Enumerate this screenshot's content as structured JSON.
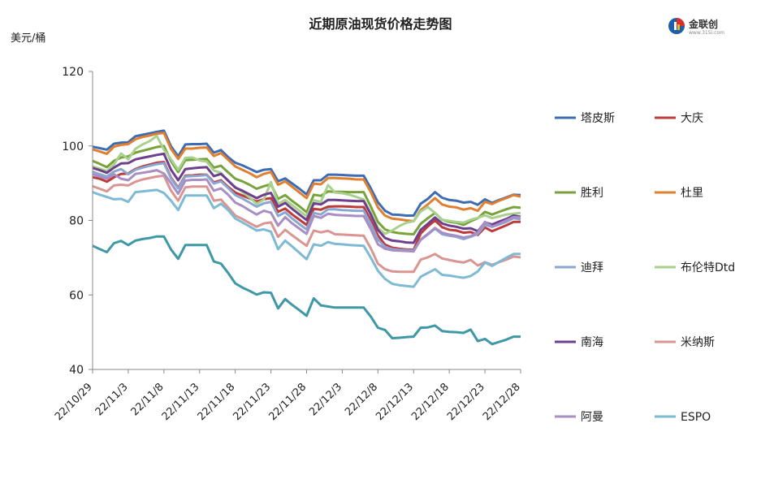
{
  "chart_data": {
    "type": "line",
    "title": "近期原油现货价格走势图",
    "ylabel": "美元/桶",
    "ylim": [
      40,
      120
    ],
    "yticks": [
      40,
      60,
      80,
      100,
      120
    ],
    "xticks": [
      "22/10/29",
      "22/11/3",
      "22/11/8",
      "22/11/13",
      "22/11/18",
      "22/11/23",
      "22/11/28",
      "22/12/3",
      "22/12/8",
      "22/12/13",
      "22/12/18",
      "22/12/23",
      "22/12/28"
    ],
    "x": [
      "22/10/29",
      "22/10/30",
      "22/10/31",
      "22/11/1",
      "22/11/2",
      "22/11/3",
      "22/11/4",
      "22/11/5",
      "22/11/6",
      "22/11/7",
      "22/11/8",
      "22/11/9",
      "22/11/10",
      "22/11/11",
      "22/11/12",
      "22/11/13",
      "22/11/14",
      "22/11/15",
      "22/11/16",
      "22/11/17",
      "22/11/18",
      "22/11/19",
      "22/11/20",
      "22/11/21",
      "22/11/22",
      "22/11/23",
      "22/11/24",
      "22/11/25",
      "22/11/26",
      "22/11/27",
      "22/11/28",
      "22/11/29",
      "22/11/30",
      "22/12/1",
      "22/12/2",
      "22/12/3",
      "22/12/4",
      "22/12/5",
      "22/12/6",
      "22/12/7",
      "22/12/8",
      "22/12/9",
      "22/12/10",
      "22/12/11",
      "22/12/12",
      "22/12/13",
      "22/12/14",
      "22/12/15",
      "22/12/16",
      "22/12/17",
      "22/12/18",
      "22/12/19",
      "22/12/20",
      "22/12/21",
      "22/12/22",
      "22/12/23",
      "22/12/24",
      "22/12/25",
      "22/12/26",
      "22/12/27",
      "22/12/28"
    ],
    "grid": false,
    "legend_position": "right",
    "series": [
      {
        "name": "塔皮斯",
        "color": "#3E6CB2",
        "values": [
          99.8,
          99.4,
          99.0,
          100.6,
          100.9,
          101.0,
          102.6,
          103.0,
          103.4,
          103.8,
          104.1,
          99.9,
          97.2,
          100.4,
          100.5,
          100.5,
          100.6,
          98.2,
          98.9,
          97.0,
          95.5,
          94.8,
          93.9,
          93.0,
          93.6,
          93.8,
          90.5,
          91.3,
          89.9,
          88.5,
          87.0,
          90.8,
          90.8,
          92.3,
          92.3,
          92.2,
          92.1,
          92.0,
          92.0,
          88.6,
          84.9,
          82.6,
          81.6,
          81.5,
          81.3,
          81.3,
          84.5,
          85.8,
          87.6,
          86.1,
          85.5,
          85.3,
          84.8,
          85.0,
          84.2,
          85.7,
          84.7,
          85.5,
          86.2,
          86.9,
          86.8
        ]
      },
      {
        "name": "大庆",
        "color": "#BE3B3B",
        "values": [
          91.6,
          91.2,
          90.4,
          91.6,
          92.5,
          92.6,
          93.8,
          94.5,
          95.0,
          95.5,
          95.7,
          91.5,
          88.8,
          92.0,
          92.1,
          92.3,
          92.3,
          90.2,
          90.8,
          89.0,
          87.5,
          86.7,
          85.9,
          85.1,
          85.7,
          86.0,
          82.3,
          83.2,
          81.6,
          80.2,
          78.8,
          83.1,
          82.9,
          83.7,
          83.8,
          83.8,
          83.7,
          83.6,
          83.6,
          80.0,
          76.0,
          73.5,
          72.7,
          72.4,
          72.2,
          72.1,
          76.5,
          78.4,
          80.0,
          78.2,
          77.5,
          77.3,
          76.7,
          76.9,
          76.1,
          78.1,
          77.1,
          77.9,
          78.7,
          79.6,
          79.6
        ]
      },
      {
        "name": "胜利",
        "color": "#78A23A",
        "values": [
          96.0,
          95.2,
          94.3,
          96.0,
          96.9,
          97.2,
          98.2,
          98.7,
          99.2,
          99.7,
          100.0,
          95.9,
          93.0,
          96.2,
          96.3,
          96.4,
          96.5,
          94.2,
          94.7,
          92.9,
          91.2,
          90.5,
          89.6,
          88.5,
          89.2,
          89.7,
          85.8,
          86.8,
          85.2,
          83.8,
          82.2,
          86.9,
          86.6,
          87.8,
          87.7,
          87.7,
          87.6,
          87.6,
          87.6,
          83.7,
          79.6,
          77.6,
          76.9,
          76.6,
          76.4,
          76.3,
          79.1,
          80.6,
          82.0,
          80.2,
          79.6,
          79.4,
          78.8,
          79.8,
          80.6,
          82.3,
          81.6,
          82.3,
          83.0,
          83.6,
          83.4
        ]
      },
      {
        "name": "杜里",
        "color": "#E07F2F",
        "values": [
          99.1,
          98.5,
          97.9,
          99.8,
          100.3,
          100.5,
          101.8,
          102.4,
          102.8,
          103.3,
          103.5,
          99.2,
          96.5,
          99.3,
          99.3,
          99.5,
          99.6,
          97.3,
          98.1,
          96.3,
          94.5,
          93.6,
          92.7,
          91.6,
          92.5,
          93.0,
          89.6,
          90.5,
          89.0,
          87.5,
          86.0,
          89.9,
          89.7,
          91.4,
          91.4,
          91.3,
          91.2,
          91.0,
          91.0,
          87.6,
          83.5,
          81.3,
          80.5,
          80.3,
          80.0,
          79.8,
          82.8,
          84.3,
          86.0,
          84.3,
          83.7,
          83.5,
          82.9,
          83.3,
          82.6,
          85.0,
          84.4,
          85.3,
          86.0,
          86.8,
          86.4
        ]
      },
      {
        "name": "迪拜",
        "color": "#8AA7D2",
        "values": [
          93.1,
          92.4,
          91.8,
          93.1,
          93.8,
          92.4,
          93.6,
          94.2,
          94.7,
          95.1,
          95.4,
          91.3,
          88.6,
          91.8,
          91.9,
          92.0,
          92.2,
          89.9,
          90.5,
          88.7,
          86.8,
          85.9,
          84.8,
          83.7,
          84.6,
          85.0,
          81.2,
          82.2,
          80.5,
          79.0,
          77.6,
          82.0,
          81.6,
          83.0,
          83.0,
          82.8,
          82.7,
          82.6,
          82.6,
          79.0,
          74.9,
          72.9,
          72.3,
          72.1,
          72.0,
          71.9,
          74.8,
          76.2,
          77.8,
          76.3,
          75.9,
          75.6,
          75.0,
          75.6,
          76.4,
          78.8,
          78.3,
          78.9,
          79.6,
          80.6,
          80.3
        ]
      },
      {
        "name": "布伦特Dtd",
        "color": "#A8D08E",
        "values": [
          94.5,
          93.9,
          93.2,
          95.0,
          98.0,
          96.4,
          99.2,
          100.4,
          101.3,
          102.7,
          99.0,
          96.4,
          93.6,
          96.8,
          96.9,
          96.1,
          95.8,
          93.4,
          92.8,
          90.6,
          89.0,
          87.6,
          86.2,
          84.5,
          85.6,
          90.3,
          84.5,
          85.5,
          84.1,
          82.6,
          81.1,
          85.4,
          85.0,
          89.5,
          87.5,
          87.3,
          86.9,
          86.3,
          85.6,
          81.9,
          78.0,
          76.4,
          77.3,
          78.5,
          79.4,
          79.8,
          82.4,
          83.6,
          82.0,
          80.2,
          79.9,
          79.6,
          79.4,
          80.2,
          80.7,
          81.4,
          80.6,
          81.1,
          81.6,
          81.8,
          82.0
        ]
      },
      {
        "name": "南海",
        "color": "#6E3F8C",
        "values": [
          94.1,
          93.5,
          92.8,
          94.2,
          95.3,
          95.4,
          96.4,
          96.8,
          97.2,
          97.6,
          97.9,
          93.6,
          90.8,
          93.8,
          94.0,
          94.2,
          94.3,
          91.9,
          92.5,
          90.7,
          88.8,
          88.0,
          87.0,
          86.0,
          86.9,
          87.4,
          83.7,
          84.7,
          83.1,
          81.6,
          80.1,
          84.6,
          84.3,
          85.5,
          85.5,
          85.4,
          85.3,
          85.2,
          85.2,
          81.6,
          77.5,
          75.3,
          74.6,
          74.4,
          74.1,
          74.0,
          77.5,
          79.1,
          80.8,
          79.2,
          78.6,
          78.3,
          77.8,
          77.9,
          77.1,
          79.5,
          78.9,
          79.7,
          80.4,
          81.3,
          81.0
        ]
      },
      {
        "name": "米纳斯",
        "color": "#DA9593",
        "values": [
          89.2,
          88.5,
          87.8,
          89.4,
          89.6,
          89.4,
          90.4,
          91.0,
          91.4,
          91.8,
          92.0,
          88.0,
          85.3,
          88.9,
          89.1,
          89.1,
          89.1,
          85.3,
          85.6,
          83.5,
          81.3,
          80.4,
          79.3,
          78.3,
          79.2,
          79.5,
          75.6,
          77.5,
          76.0,
          74.6,
          73.2,
          77.3,
          76.8,
          77.2,
          76.3,
          76.2,
          76.1,
          76.0,
          75.9,
          72.5,
          68.4,
          66.9,
          66.3,
          66.2,
          66.2,
          66.2,
          69.5,
          70.1,
          71.0,
          69.8,
          69.4,
          69.0,
          68.7,
          69.4,
          67.9,
          68.8,
          68.1,
          68.8,
          69.5,
          70.3,
          70.1
        ]
      },
      {
        "name": "阿曼",
        "color": "#A78EC4",
        "values": [
          92.4,
          91.8,
          91.2,
          92.4,
          91.2,
          90.8,
          92.5,
          92.8,
          93.1,
          93.5,
          92.6,
          90.0,
          87.2,
          90.7,
          90.9,
          90.9,
          91.0,
          88.0,
          88.6,
          86.9,
          84.8,
          83.9,
          82.7,
          81.6,
          82.6,
          82.1,
          78.6,
          80.9,
          79.2,
          77.8,
          76.4,
          81.2,
          80.7,
          81.8,
          81.5,
          81.4,
          81.3,
          81.2,
          81.2,
          77.7,
          73.6,
          72.4,
          72.0,
          71.9,
          71.8,
          71.7,
          74.9,
          76.4,
          78.0,
          76.7,
          76.2,
          75.9,
          75.4,
          75.8,
          76.8,
          79.6,
          78.3,
          79.1,
          80.0,
          80.9,
          80.8
        ]
      },
      {
        "name": "ESPO",
        "color": "#7EBAD4",
        "values": [
          87.6,
          86.9,
          86.3,
          85.7,
          85.8,
          85.0,
          87.6,
          87.8,
          88.0,
          88.2,
          87.4,
          85.3,
          82.8,
          86.7,
          86.7,
          86.7,
          86.7,
          83.3,
          84.5,
          82.8,
          80.5,
          79.5,
          78.4,
          77.3,
          77.6,
          77.0,
          72.3,
          74.6,
          73.0,
          71.3,
          69.6,
          73.6,
          73.2,
          74.2,
          73.7,
          73.6,
          73.4,
          73.3,
          73.2,
          70.0,
          66.5,
          64.3,
          63.0,
          62.6,
          62.4,
          62.2,
          64.9,
          65.9,
          66.9,
          65.4,
          65.2,
          64.9,
          64.6,
          65.1,
          66.3,
          68.7,
          67.8,
          68.9,
          70.0,
          71.0,
          71.0
        ]
      },
      {
        "name": "",
        "color": "#3E98A6",
        "values": [
          73.2,
          72.3,
          71.5,
          73.9,
          74.5,
          73.4,
          74.6,
          75.0,
          75.3,
          75.7,
          75.7,
          72.2,
          69.7,
          73.4,
          73.4,
          73.4,
          73.4,
          69.0,
          68.4,
          65.9,
          63.1,
          62.0,
          61.1,
          60.1,
          60.7,
          60.6,
          56.4,
          58.9,
          57.3,
          55.9,
          54.4,
          59.1,
          57.2,
          56.9,
          56.6,
          56.6,
          56.6,
          56.6,
          56.6,
          54.2,
          51.2,
          50.6,
          48.4,
          48.5,
          48.7,
          48.8,
          51.2,
          51.3,
          51.8,
          50.3,
          50.1,
          50.0,
          49.8,
          50.7,
          47.6,
          48.2,
          46.8,
          47.4,
          48.0,
          48.8,
          48.8
        ]
      }
    ]
  },
  "logo": {
    "name": "金联创",
    "url": "www.315i.com",
    "registered": "®"
  }
}
